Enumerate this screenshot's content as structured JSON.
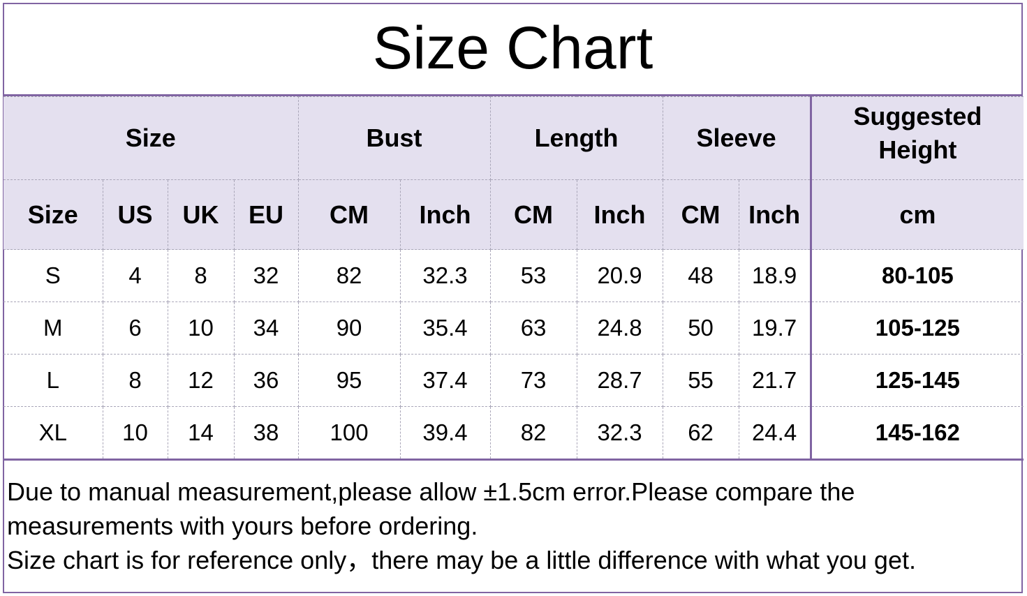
{
  "title": "Size Chart",
  "header_groups": [
    "Size",
    "Bust",
    "Length",
    "Sleeve",
    "Suggested Height"
  ],
  "columns": [
    "Size",
    "US",
    "UK",
    "EU",
    "CM",
    "Inch",
    "CM",
    "Inch",
    "CM",
    "Inch",
    "cm"
  ],
  "rows": [
    [
      "S",
      "4",
      "8",
      "32",
      "82",
      "32.3",
      "53",
      "20.9",
      "48",
      "18.9",
      "80-105"
    ],
    [
      "M",
      "6",
      "10",
      "34",
      "90",
      "35.4",
      "63",
      "24.8",
      "50",
      "19.7",
      "105-125"
    ],
    [
      "L",
      "8",
      "12",
      "36",
      "95",
      "37.4",
      "73",
      "28.7",
      "55",
      "21.7",
      "125-145"
    ],
    [
      "XL",
      "10",
      "14",
      "38",
      "100",
      "39.4",
      "82",
      "32.3",
      "62",
      "24.4",
      "145-162"
    ]
  ],
  "notes": [
    "Due to manual measurement,please allow ±1.5cm error.Please compare the measurements with yours before ordering.",
    "Size chart is for reference only，there may be a little difference with what you get."
  ],
  "colors": {
    "border": "#8064a2",
    "header_bg": "#e4e0ef"
  }
}
